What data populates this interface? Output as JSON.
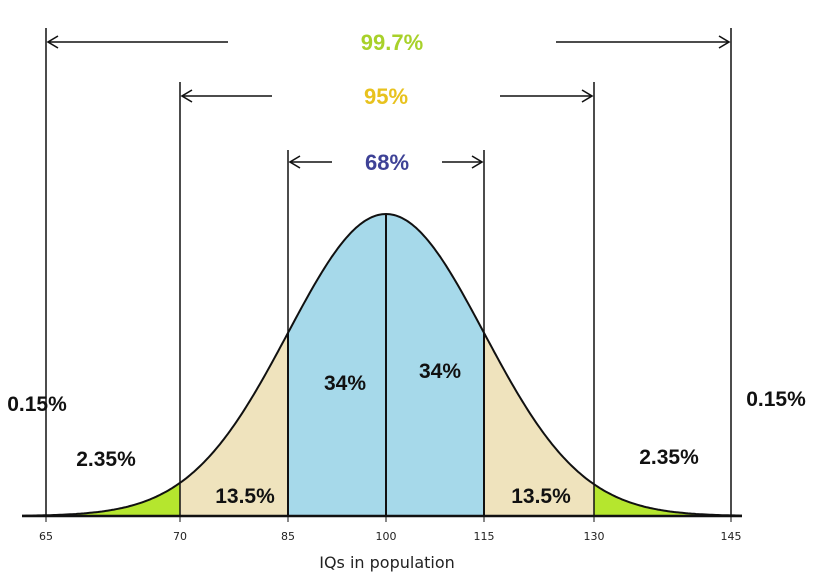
{
  "chart_data": {
    "type": "area",
    "title": "",
    "xlabel": "IQs in population",
    "ylabel": "",
    "x_ticks": [
      "65",
      "70",
      "85",
      "100",
      "115",
      "130",
      "145"
    ],
    "regions": [
      {
        "from": "65",
        "to": "70",
        "value": "2.35%",
        "color": "#b5e62e"
      },
      {
        "from": "70",
        "to": "85",
        "value": "13.5%",
        "color": "#efe3bd"
      },
      {
        "from": "85",
        "to": "100",
        "value": "34%",
        "color": "#a6d9ea"
      },
      {
        "from": "100",
        "to": "115",
        "value": "34%",
        "color": "#a6d9ea"
      },
      {
        "from": "115",
        "to": "130",
        "value": "13.5%",
        "color": "#efe3bd"
      },
      {
        "from": "130",
        "to": "145",
        "value": "2.35%",
        "color": "#b5e62e"
      }
    ],
    "tails": [
      "0.15%",
      "0.15%"
    ],
    "bands": [
      {
        "label": "99.7%",
        "from": "65",
        "to": "145",
        "color": "#a8d12a"
      },
      {
        "label": "95%",
        "from": "70",
        "to": "130",
        "color": "#e8c21e"
      },
      {
        "label": "68%",
        "from": "85",
        "to": "115",
        "color": "#3e4296"
      }
    ],
    "grid": false,
    "legend": "none"
  }
}
